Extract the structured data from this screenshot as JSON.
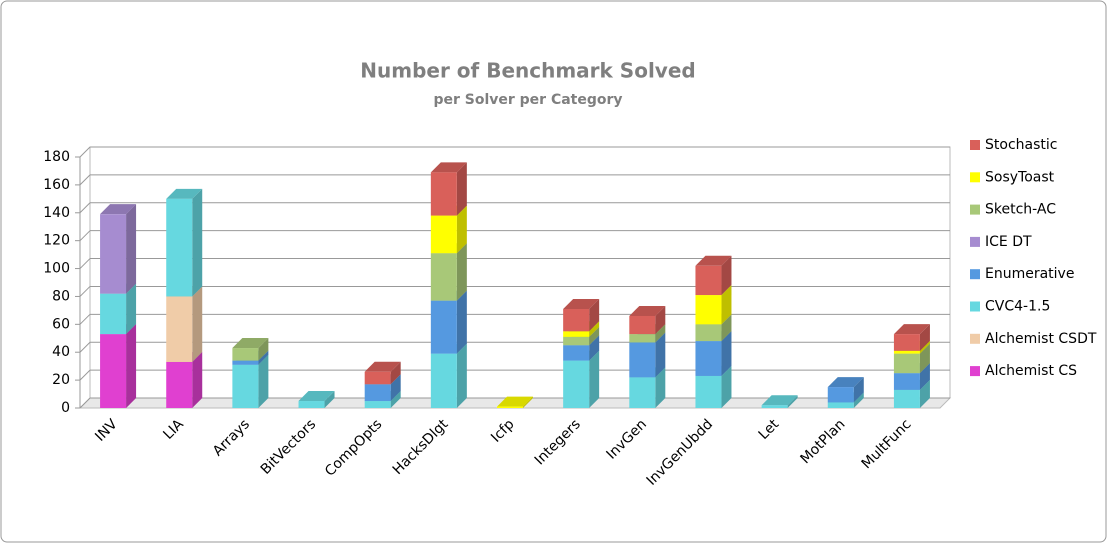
{
  "chart_data": {
    "type": "bar3d-stacked",
    "title": "Number of Benchmark Solved",
    "subtitle": "per Solver per Category",
    "categories": [
      "INV",
      "LIA",
      "Arrays",
      "BitVectors",
      "CompOpts",
      "HacksDlgt",
      "Icfp",
      "Integers",
      "InvGen",
      "InvGenUbdd",
      "Let",
      "MotPlan",
      "MultFunc"
    ],
    "series": [
      {
        "name": "Alchemist CS",
        "color": "#e040d0",
        "values": [
          53,
          33,
          0,
          0,
          0,
          0,
          0,
          0,
          0,
          0,
          0,
          0,
          0
        ]
      },
      {
        "name": "Alchemist CSDT",
        "color": "#f0cca8",
        "values": [
          0,
          47,
          0,
          0,
          0,
          0,
          0,
          0,
          0,
          0,
          0,
          0,
          0
        ]
      },
      {
        "name": "CVC4-1.5",
        "color": "#66d8e0",
        "values": [
          29,
          70,
          31,
          5,
          5,
          39,
          0,
          34,
          22,
          23,
          2,
          4,
          13
        ]
      },
      {
        "name": "Enumerative",
        "color": "#5599e0",
        "values": [
          0,
          0,
          3,
          0,
          12,
          38,
          0,
          11,
          25,
          25,
          0,
          11,
          12
        ]
      },
      {
        "name": "ICE DT",
        "color": "#a68cd0",
        "values": [
          57,
          0,
          0,
          0,
          0,
          0,
          0,
          0,
          0,
          0,
          0,
          0,
          0
        ]
      },
      {
        "name": "Sketch-AC",
        "color": "#a8c878",
        "values": [
          0,
          0,
          9,
          0,
          0,
          34,
          0,
          6,
          6,
          12,
          0,
          0,
          14
        ]
      },
      {
        "name": "SosyToast",
        "color": "#ffff00",
        "values": [
          0,
          0,
          0,
          0,
          0,
          27,
          1,
          4,
          0,
          21,
          0,
          0,
          2
        ]
      },
      {
        "name": "Stochastic",
        "color": "#d9605a",
        "values": [
          0,
          0,
          0,
          0,
          9,
          31,
          0,
          16,
          13,
          21,
          0,
          0,
          12
        ]
      }
    ],
    "ylim": [
      0,
      180
    ],
    "yticks": [
      0,
      20,
      40,
      60,
      80,
      100,
      120,
      140,
      160,
      180
    ],
    "grid": true,
    "legend": "right"
  }
}
